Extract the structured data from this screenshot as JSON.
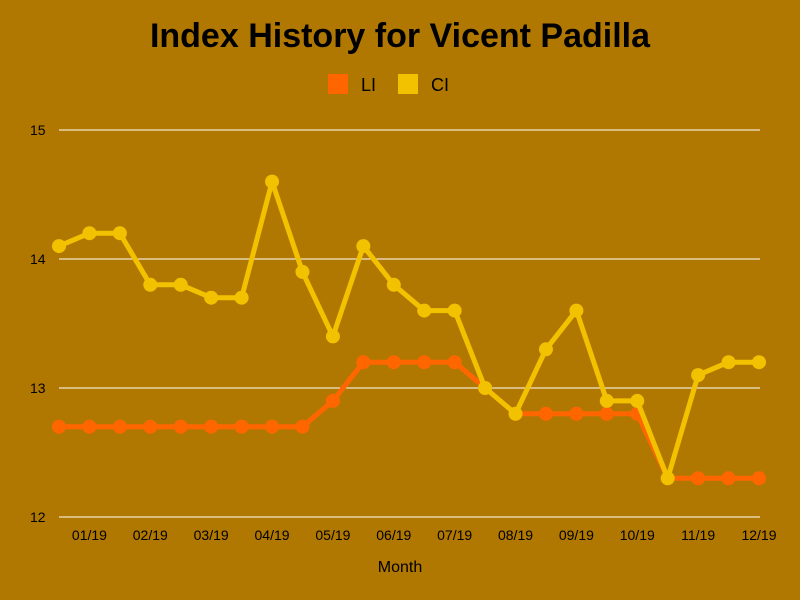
{
  "chart_data": {
    "type": "line",
    "title": "Index History for Vicent Padilla",
    "xlabel": "Month",
    "ylabel": "",
    "ylim": [
      12,
      15
    ],
    "yticks": [
      12,
      13,
      14,
      15
    ],
    "grid": true,
    "legend": "top-center",
    "xtick_labels": [
      "01/19",
      "02/19",
      "03/19",
      "04/19",
      "05/19",
      "06/19",
      "07/19",
      "08/19",
      "09/19",
      "10/19",
      "11/19",
      "12/19"
    ],
    "point_count": 24,
    "series": [
      {
        "name": "LI",
        "color": "#ff6600",
        "values": [
          12.7,
          12.7,
          12.7,
          12.7,
          12.7,
          12.7,
          12.7,
          12.7,
          12.7,
          12.9,
          13.2,
          13.2,
          13.2,
          13.2,
          13.0,
          12.8,
          12.8,
          12.8,
          12.8,
          12.8,
          12.3,
          12.3,
          12.3,
          12.3
        ]
      },
      {
        "name": "CI",
        "color": "#f2c200",
        "values": [
          14.1,
          14.2,
          14.2,
          13.8,
          13.8,
          13.7,
          13.7,
          14.6,
          13.9,
          13.4,
          14.1,
          13.8,
          13.6,
          13.6,
          13.0,
          12.8,
          13.3,
          13.6,
          12.9,
          12.9,
          12.3,
          13.1,
          13.2,
          13.2
        ]
      }
    ]
  },
  "colors": {
    "background": "#b07800",
    "gridline": "#ffffff"
  }
}
